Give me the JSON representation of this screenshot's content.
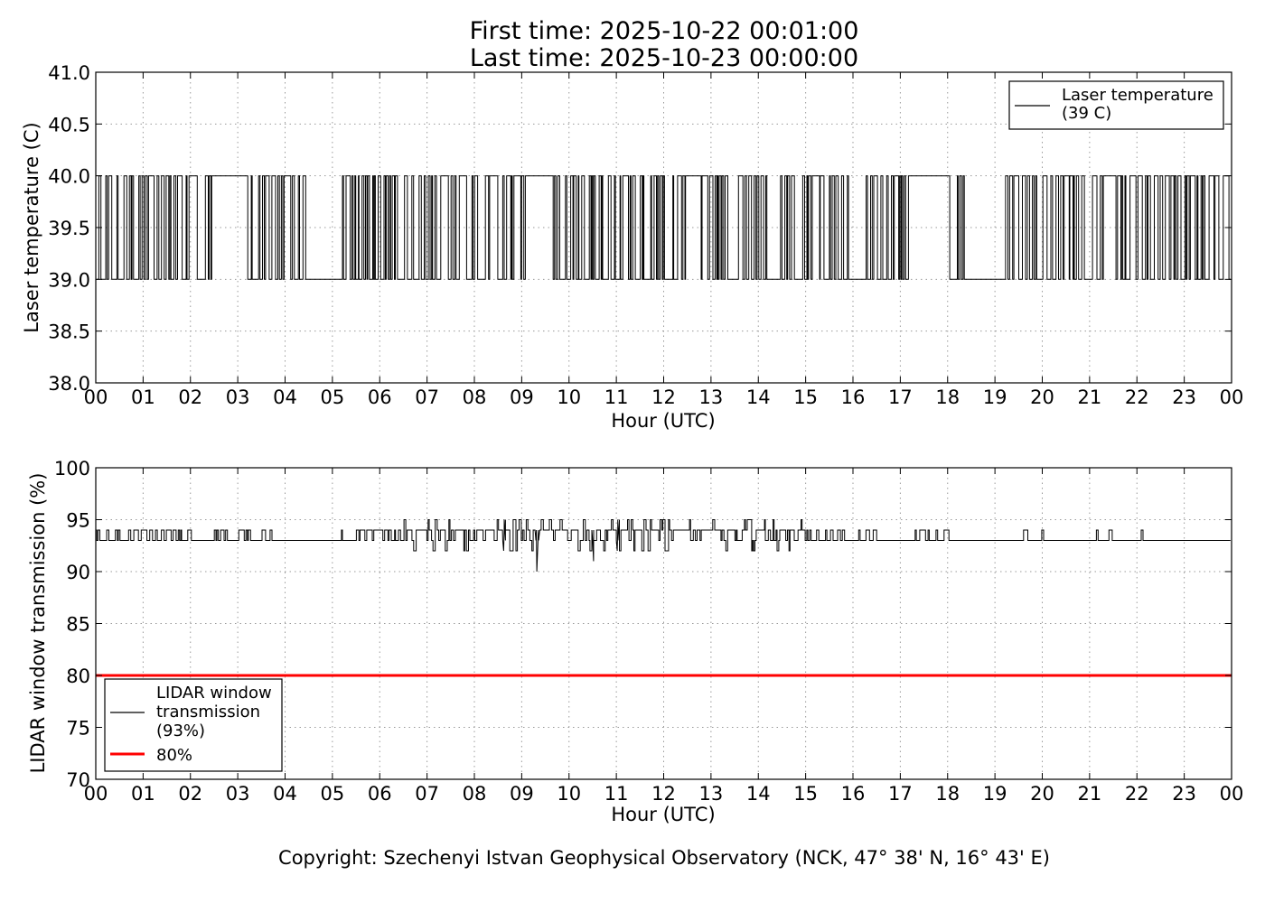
{
  "figure": {
    "title_line1": "First time: 2025-10-22 00:01:00",
    "title_line2": "Last time: 2025-10-23 00:00:00",
    "copyright": "Copyright: Szechenyi Istvan Geophysical Observatory (NCK, 47° 38' N, 16° 43' E)",
    "colors": {
      "series": "#000000",
      "threshold": "#ff0000",
      "background": "#ffffff"
    }
  },
  "chart_data": [
    {
      "type": "line",
      "xlabel": "Hour (UTC)",
      "ylabel": "Laser temperature (C)",
      "x_tick_labels": [
        "00",
        "01",
        "02",
        "03",
        "04",
        "05",
        "06",
        "07",
        "08",
        "09",
        "10",
        "11",
        "12",
        "13",
        "14",
        "15",
        "16",
        "17",
        "18",
        "19",
        "20",
        "21",
        "22",
        "23",
        "00"
      ],
      "y_tick_labels": [
        "38.0",
        "38.5",
        "39.0",
        "39.5",
        "40.0",
        "40.5",
        "41.0"
      ],
      "xlim": [
        0,
        24
      ],
      "ylim": [
        38.0,
        41.0
      ],
      "grid": true,
      "legend_position": "top-right",
      "legend_entries": [
        {
          "label": "Laser temperature\n(39 C)",
          "color": "#000000"
        }
      ],
      "series": [
        {
          "name": "Laser temperature (39 C)",
          "values_range": [
            39.0,
            40.0
          ],
          "steady_40_intervals": [
            [
              2.5,
              3.2
            ],
            [
              9.05,
              9.6
            ],
            [
              17.15,
              18.0
            ]
          ],
          "steady_39_intervals": [
            [
              4.4,
              4.85
            ],
            [
              15.9,
              16.2
            ],
            [
              18.35,
              19.2
            ]
          ]
        }
      ]
    },
    {
      "type": "line",
      "xlabel": "Hour (UTC)",
      "ylabel": "LIDAR window transmission (%)",
      "x_tick_labels": [
        "00",
        "01",
        "02",
        "03",
        "04",
        "05",
        "06",
        "07",
        "08",
        "09",
        "10",
        "11",
        "12",
        "13",
        "14",
        "15",
        "16",
        "17",
        "18",
        "19",
        "20",
        "21",
        "22",
        "23",
        "00"
      ],
      "y_tick_labels": [
        "70",
        "75",
        "80",
        "85",
        "90",
        "95",
        "100"
      ],
      "xlim": [
        0,
        24
      ],
      "ylim": [
        70,
        100
      ],
      "grid": true,
      "legend_position": "bottom-left",
      "legend_entries": [
        {
          "label": "LIDAR window\ntransmission\n(93%)",
          "color": "#000000"
        },
        {
          "label": "80%",
          "color": "#ff0000"
        }
      ],
      "series": [
        {
          "name": "LIDAR window transmission (93%)",
          "baseline": 93,
          "typical_range": [
            92,
            95
          ],
          "minimum": {
            "x": 9.3,
            "y": 90
          }
        },
        {
          "name": "80%",
          "constant": 80
        }
      ]
    }
  ]
}
